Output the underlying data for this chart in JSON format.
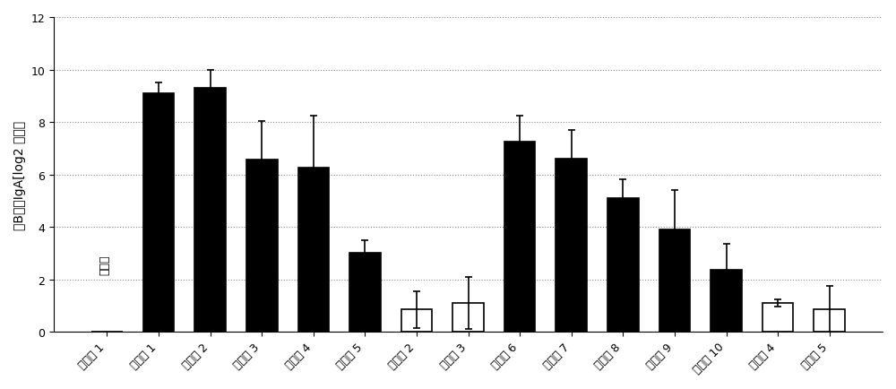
{
  "categories": [
    "比较例 1",
    "实施例 1",
    "实施例 2",
    "实施例 3",
    "实施例 4",
    "实施例 5",
    "比较例 2",
    "比较例 3",
    "实施例 6",
    "实施例 7",
    "实施例 8",
    "实施例 9",
    "实施例 10",
    "比较例 4",
    "比较例 5"
  ],
  "values": [
    0,
    9.1,
    9.3,
    6.55,
    6.25,
    3.0,
    0.85,
    1.1,
    7.25,
    6.6,
    5.1,
    3.9,
    2.35,
    1.1,
    0.85
  ],
  "errors": [
    0,
    0.4,
    0.7,
    1.5,
    2.0,
    0.5,
    0.7,
    1.0,
    1.0,
    1.1,
    0.7,
    1.5,
    1.0,
    0.15,
    0.9
  ],
  "bar_colors": [
    "#000000",
    "#000000",
    "#000000",
    "#000000",
    "#000000",
    "#000000",
    "#ffffff",
    "#ffffff",
    "#000000",
    "#000000",
    "#000000",
    "#000000",
    "#000000",
    "#ffffff",
    "#ffffff"
  ],
  "bar_edgecolors": [
    "#000000",
    "#000000",
    "#000000",
    "#000000",
    "#000000",
    "#000000",
    "#000000",
    "#000000",
    "#000000",
    "#000000",
    "#000000",
    "#000000",
    "#000000",
    "#000000",
    "#000000"
  ],
  "ylabel": "抗B粘膜IgA[log2 效价］",
  "annotation": "未实施",
  "ylim": [
    0,
    12
  ],
  "yticks": [
    0,
    2,
    4,
    6,
    8,
    10,
    12
  ],
  "grid_color": "#888888",
  "background_color": "#ffffff",
  "title_fontsize": 11,
  "label_fontsize": 10,
  "tick_fontsize": 9
}
